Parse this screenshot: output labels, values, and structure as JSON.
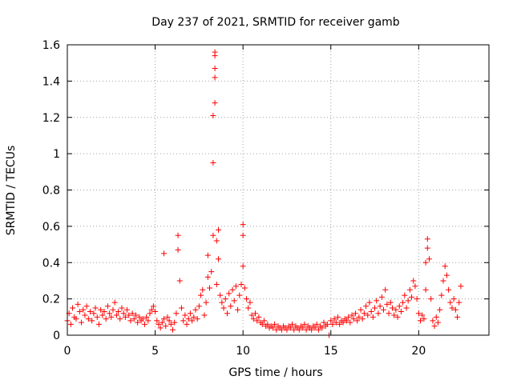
{
  "chart_data": {
    "type": "scatter",
    "title": "Day 237 of 2021, SRMTID for receiver gamb",
    "xlabel": "GPS time / hours",
    "ylabel": "SRMTID / TECUs",
    "xlim": [
      0,
      24
    ],
    "ylim": [
      0,
      1.6
    ],
    "xticks": [
      0,
      5,
      10,
      15,
      20
    ],
    "xtick_labels": [
      "0",
      "5",
      "10",
      "15",
      "20"
    ],
    "yticks": [
      0,
      0.2,
      0.4,
      0.6,
      0.8,
      1,
      1.2,
      1.4,
      1.6
    ],
    "ytick_labels": [
      "0",
      "0.2",
      "0.4",
      "0.6",
      "0.8",
      "1",
      "1.2",
      "1.4",
      "1.6"
    ],
    "grid": true,
    "marker": "plus",
    "marker_color": "#ff0000",
    "series": [
      {
        "name": "SRMTID",
        "points": [
          [
            0.0,
            0.08
          ],
          [
            0.1,
            0.12
          ],
          [
            0.2,
            0.06
          ],
          [
            0.3,
            0.15
          ],
          [
            0.4,
            0.1
          ],
          [
            0.5,
            0.09
          ],
          [
            0.6,
            0.17
          ],
          [
            0.7,
            0.13
          ],
          [
            0.8,
            0.07
          ],
          [
            0.9,
            0.14
          ],
          [
            1.0,
            0.11
          ],
          [
            1.1,
            0.16
          ],
          [
            1.2,
            0.09
          ],
          [
            1.3,
            0.13
          ],
          [
            1.4,
            0.08
          ],
          [
            1.5,
            0.12
          ],
          [
            1.6,
            0.15
          ],
          [
            1.7,
            0.1
          ],
          [
            1.8,
            0.06
          ],
          [
            1.9,
            0.14
          ],
          [
            2.0,
            0.11
          ],
          [
            2.1,
            0.13
          ],
          [
            2.2,
            0.09
          ],
          [
            2.3,
            0.16
          ],
          [
            2.4,
            0.12
          ],
          [
            2.5,
            0.1
          ],
          [
            2.6,
            0.14
          ],
          [
            2.7,
            0.18
          ],
          [
            2.8,
            0.11
          ],
          [
            2.9,
            0.13
          ],
          [
            3.0,
            0.09
          ],
          [
            3.1,
            0.15
          ],
          [
            3.2,
            0.12
          ],
          [
            3.3,
            0.1
          ],
          [
            3.4,
            0.14
          ],
          [
            3.5,
            0.11
          ],
          [
            3.6,
            0.08
          ],
          [
            3.7,
            0.12
          ],
          [
            3.8,
            0.09
          ],
          [
            3.9,
            0.11
          ],
          [
            4.0,
            0.07
          ],
          [
            4.1,
            0.1
          ],
          [
            4.2,
            0.08
          ],
          [
            4.3,
            0.09
          ],
          [
            4.4,
            0.06
          ],
          [
            4.5,
            0.1
          ],
          [
            4.6,
            0.08
          ],
          [
            4.7,
            0.12
          ],
          [
            4.8,
            0.14
          ],
          [
            4.9,
            0.16
          ],
          [
            5.0,
            0.13
          ],
          [
            5.1,
            0.08
          ],
          [
            5.2,
            0.06
          ],
          [
            5.3,
            0.04
          ],
          [
            5.4,
            0.07
          ],
          [
            5.5,
            0.09
          ],
          [
            5.5,
            0.45
          ],
          [
            5.6,
            0.05
          ],
          [
            5.7,
            0.1
          ],
          [
            5.8,
            0.08
          ],
          [
            5.9,
            0.06
          ],
          [
            6.0,
            0.03
          ],
          [
            6.1,
            0.07
          ],
          [
            6.2,
            0.12
          ],
          [
            6.3,
            0.47
          ],
          [
            6.3,
            0.55
          ],
          [
            6.4,
            0.3
          ],
          [
            6.5,
            0.15
          ],
          [
            6.6,
            0.08
          ],
          [
            6.7,
            0.11
          ],
          [
            6.8,
            0.06
          ],
          [
            6.9,
            0.09
          ],
          [
            7.0,
            0.12
          ],
          [
            7.1,
            0.08
          ],
          [
            7.2,
            0.1
          ],
          [
            7.3,
            0.14
          ],
          [
            7.4,
            0.09
          ],
          [
            7.5,
            0.16
          ],
          [
            7.6,
            0.22
          ],
          [
            7.7,
            0.25
          ],
          [
            7.8,
            0.11
          ],
          [
            7.9,
            0.18
          ],
          [
            8.0,
            0.44
          ],
          [
            8.0,
            0.32
          ],
          [
            8.1,
            0.26
          ],
          [
            8.2,
            0.35
          ],
          [
            8.3,
            0.55
          ],
          [
            8.3,
            0.95
          ],
          [
            8.3,
            1.21
          ],
          [
            8.4,
            1.56
          ],
          [
            8.4,
            1.54
          ],
          [
            8.4,
            1.47
          ],
          [
            8.4,
            1.42
          ],
          [
            8.4,
            1.28
          ],
          [
            8.5,
            0.52
          ],
          [
            8.5,
            0.28
          ],
          [
            8.6,
            0.58
          ],
          [
            8.6,
            0.42
          ],
          [
            8.7,
            0.22
          ],
          [
            8.8,
            0.18
          ],
          [
            8.9,
            0.15
          ],
          [
            9.0,
            0.2
          ],
          [
            9.1,
            0.12
          ],
          [
            9.2,
            0.23
          ],
          [
            9.3,
            0.16
          ],
          [
            9.4,
            0.25
          ],
          [
            9.5,
            0.19
          ],
          [
            9.6,
            0.27
          ],
          [
            9.7,
            0.14
          ],
          [
            9.8,
            0.22
          ],
          [
            9.9,
            0.28
          ],
          [
            10.0,
            0.61
          ],
          [
            10.0,
            0.55
          ],
          [
            10.0,
            0.38
          ],
          [
            10.1,
            0.26
          ],
          [
            10.2,
            0.2
          ],
          [
            10.3,
            0.15
          ],
          [
            10.4,
            0.18
          ],
          [
            10.5,
            0.11
          ],
          [
            10.6,
            0.09
          ],
          [
            10.7,
            0.12
          ],
          [
            10.8,
            0.08
          ],
          [
            10.9,
            0.1
          ],
          [
            11.0,
            0.07
          ],
          [
            11.1,
            0.06
          ],
          [
            11.2,
            0.08
          ],
          [
            11.3,
            0.05
          ],
          [
            11.4,
            0.06
          ],
          [
            11.5,
            0.04
          ],
          [
            11.6,
            0.05
          ],
          [
            11.7,
            0.04
          ],
          [
            11.8,
            0.06
          ],
          [
            11.9,
            0.03
          ],
          [
            12.0,
            0.05
          ],
          [
            12.1,
            0.04
          ],
          [
            12.2,
            0.03
          ],
          [
            12.3,
            0.05
          ],
          [
            12.4,
            0.04
          ],
          [
            12.5,
            0.03
          ],
          [
            12.6,
            0.05
          ],
          [
            12.7,
            0.04
          ],
          [
            12.8,
            0.06
          ],
          [
            12.9,
            0.03
          ],
          [
            13.0,
            0.05
          ],
          [
            13.1,
            0.04
          ],
          [
            13.2,
            0.03
          ],
          [
            13.3,
            0.05
          ],
          [
            13.4,
            0.04
          ],
          [
            13.5,
            0.06
          ],
          [
            13.6,
            0.03
          ],
          [
            13.7,
            0.05
          ],
          [
            13.8,
            0.04
          ],
          [
            13.9,
            0.03
          ],
          [
            14.0,
            0.05
          ],
          [
            14.1,
            0.04
          ],
          [
            14.2,
            0.06
          ],
          [
            14.3,
            0.03
          ],
          [
            14.4,
            0.05
          ],
          [
            14.5,
            0.04
          ],
          [
            14.6,
            0.07
          ],
          [
            14.7,
            0.05
          ],
          [
            14.8,
            0.06
          ],
          [
            14.9,
            0.0
          ],
          [
            15.0,
            0.08
          ],
          [
            15.1,
            0.06
          ],
          [
            15.2,
            0.09
          ],
          [
            15.3,
            0.07
          ],
          [
            15.4,
            0.1
          ],
          [
            15.5,
            0.06
          ],
          [
            15.6,
            0.08
          ],
          [
            15.7,
            0.07
          ],
          [
            15.8,
            0.09
          ],
          [
            15.9,
            0.08
          ],
          [
            16.0,
            0.1
          ],
          [
            16.1,
            0.07
          ],
          [
            16.2,
            0.11
          ],
          [
            16.3,
            0.09
          ],
          [
            16.4,
            0.12
          ],
          [
            16.5,
            0.08
          ],
          [
            16.6,
            0.1
          ],
          [
            16.7,
            0.14
          ],
          [
            16.8,
            0.09
          ],
          [
            16.9,
            0.12
          ],
          [
            17.0,
            0.16
          ],
          [
            17.1,
            0.11
          ],
          [
            17.2,
            0.18
          ],
          [
            17.3,
            0.13
          ],
          [
            17.4,
            0.1
          ],
          [
            17.5,
            0.15
          ],
          [
            17.6,
            0.19
          ],
          [
            17.7,
            0.12
          ],
          [
            17.8,
            0.16
          ],
          [
            17.9,
            0.21
          ],
          [
            18.0,
            0.14
          ],
          [
            18.1,
            0.25
          ],
          [
            18.2,
            0.17
          ],
          [
            18.3,
            0.12
          ],
          [
            18.4,
            0.18
          ],
          [
            18.5,
            0.15
          ],
          [
            18.6,
            0.11
          ],
          [
            18.7,
            0.14
          ],
          [
            18.8,
            0.1
          ],
          [
            18.9,
            0.16
          ],
          [
            19.0,
            0.13
          ],
          [
            19.1,
            0.18
          ],
          [
            19.2,
            0.22
          ],
          [
            19.3,
            0.15
          ],
          [
            19.4,
            0.19
          ],
          [
            19.5,
            0.25
          ],
          [
            19.6,
            0.21
          ],
          [
            19.7,
            0.3
          ],
          [
            19.8,
            0.27
          ],
          [
            19.9,
            0.2
          ],
          [
            20.0,
            0.12
          ],
          [
            20.1,
            0.08
          ],
          [
            20.2,
            0.11
          ],
          [
            20.3,
            0.09
          ],
          [
            20.4,
            0.25
          ],
          [
            20.4,
            0.4
          ],
          [
            20.5,
            0.53
          ],
          [
            20.5,
            0.48
          ],
          [
            20.6,
            0.42
          ],
          [
            20.7,
            0.2
          ],
          [
            20.8,
            0.08
          ],
          [
            20.9,
            0.05
          ],
          [
            21.0,
            0.1
          ],
          [
            21.1,
            0.07
          ],
          [
            21.2,
            0.14
          ],
          [
            21.3,
            0.22
          ],
          [
            21.4,
            0.3
          ],
          [
            21.5,
            0.38
          ],
          [
            21.6,
            0.33
          ],
          [
            21.7,
            0.25
          ],
          [
            21.8,
            0.18
          ],
          [
            21.9,
            0.15
          ],
          [
            22.0,
            0.2
          ],
          [
            22.1,
            0.14
          ],
          [
            22.2,
            0.1
          ],
          [
            22.3,
            0.18
          ],
          [
            22.4,
            0.27
          ]
        ]
      }
    ]
  }
}
